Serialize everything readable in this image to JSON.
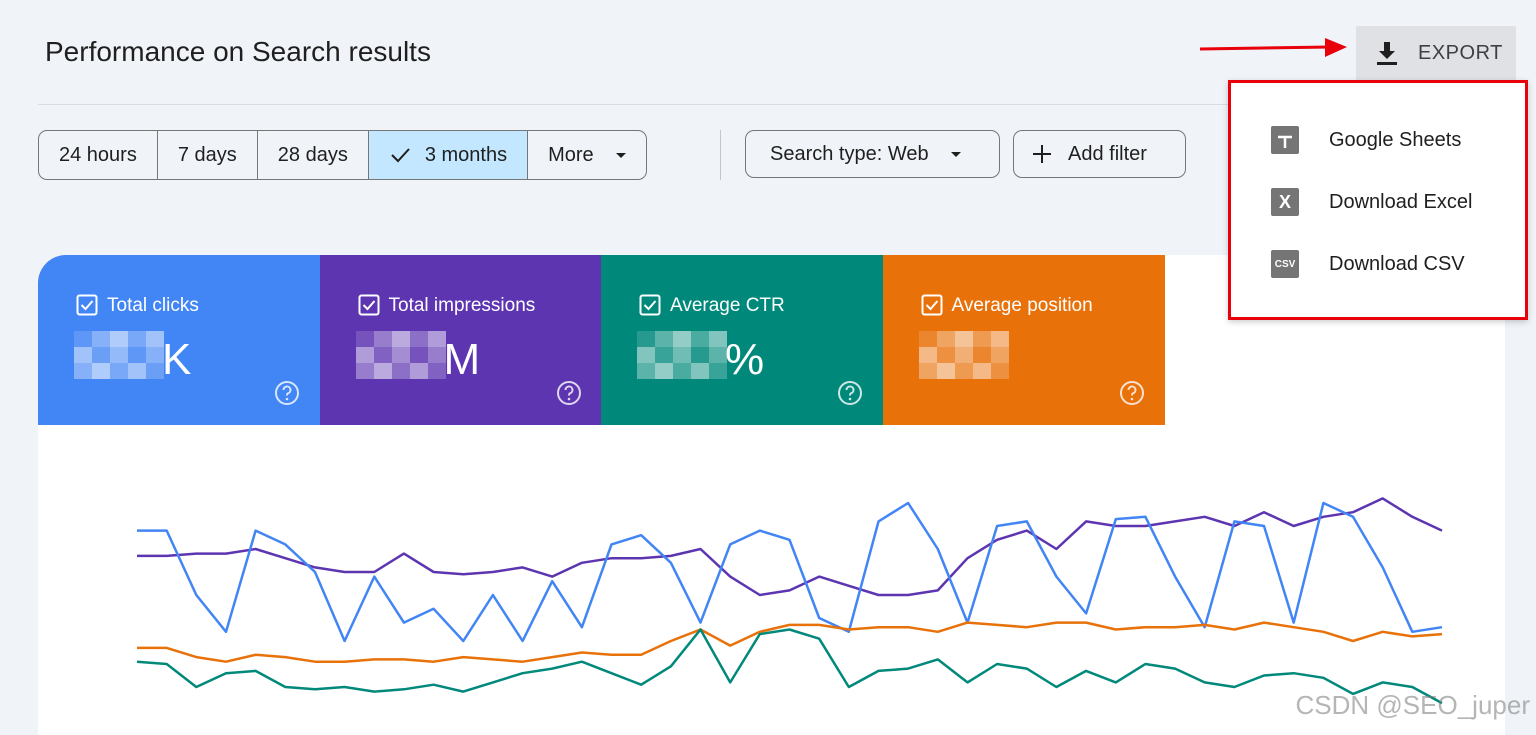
{
  "header": {
    "title": "Performance on Search results",
    "export": "EXPORT"
  },
  "date_filters": {
    "options": [
      "24 hours",
      "7 days",
      "28 days",
      "3 months",
      "More"
    ],
    "selected": 3
  },
  "filters": [
    "Search type: Web",
    "Add filter"
  ],
  "export_menu": [
    {
      "label": "Google Sheets"
    },
    {
      "icon_text": "X",
      "label": "Download Excel"
    },
    {
      "icon_text": "CSV",
      "label": "Download CSV"
    }
  ],
  "metrics": [
    {
      "label": "Total clicks",
      "suffix": "K",
      "color": "#4285f4"
    },
    {
      "label": "Total impressions",
      "suffix": "M",
      "color": "#5e35b1"
    },
    {
      "label": "Average CTR",
      "suffix": "%",
      "color": "#00897b"
    },
    {
      "label": "Average position",
      "suffix": "",
      "color": "#e8710a"
    }
  ],
  "chart": {
    "type": "line",
    "ylim": [
      0,
      100
    ],
    "series": [
      {
        "color": "#5e35b1",
        "values": [
          67,
          67,
          68,
          68,
          70,
          66,
          62,
          60,
          60,
          68,
          60,
          59,
          60,
          62,
          58,
          64,
          66,
          66,
          67,
          70,
          58,
          50,
          52,
          58,
          54,
          50,
          50,
          52,
          66,
          74,
          78,
          70,
          82,
          80,
          80,
          82,
          84,
          80,
          86,
          80,
          84,
          86,
          92,
          84,
          78
        ]
      },
      {
        "color": "#4285f4",
        "values": [
          78,
          78,
          50,
          34,
          78,
          72,
          60,
          30,
          58,
          38,
          44,
          30,
          50,
          30,
          56,
          36,
          72,
          76,
          64,
          38,
          72,
          78,
          74,
          40,
          34,
          82,
          90,
          70,
          38,
          80,
          82,
          58,
          42,
          83,
          84,
          58,
          36,
          82,
          80,
          38,
          90,
          84,
          62,
          34,
          36
        ]
      },
      {
        "color": "#e8710a",
        "values": [
          27,
          27,
          23,
          21,
          24,
          23,
          21,
          21,
          22,
          22,
          21,
          23,
          22,
          21,
          23,
          25,
          24,
          24,
          30,
          35,
          28,
          34,
          37,
          37,
          35,
          36,
          36,
          34,
          38,
          37,
          36,
          38,
          38,
          35,
          36,
          36,
          37,
          35,
          38,
          36,
          34,
          30,
          34,
          32,
          33
        ]
      },
      {
        "color": "#00897b",
        "values": [
          21,
          20,
          10,
          16,
          17,
          10,
          9,
          10,
          8,
          9,
          11,
          8,
          12,
          16,
          18,
          21,
          16,
          11,
          19,
          35,
          12,
          33,
          35,
          31,
          10,
          17,
          18,
          22,
          12,
          20,
          18,
          10,
          17,
          12,
          20,
          18,
          12,
          10,
          15,
          16,
          14,
          7,
          12,
          10,
          3
        ]
      }
    ]
  },
  "watermark": "CSDN @SEO_juper"
}
